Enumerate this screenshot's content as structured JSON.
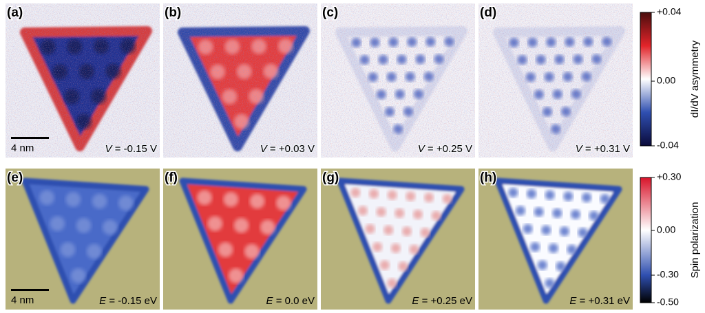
{
  "figure": {
    "panels": [
      {
        "label": "(a)",
        "scale_bar": "4 nm",
        "caption": {
          "symbol": "V",
          "value": "= -0.15 V"
        }
      },
      {
        "label": "(b)",
        "caption": {
          "symbol": "V",
          "value": "= +0.03 V"
        }
      },
      {
        "label": "(c)",
        "caption": {
          "symbol": "V",
          "value": "= +0.25 V"
        }
      },
      {
        "label": "(d)",
        "caption": {
          "symbol": "V",
          "value": "= +0.31 V"
        }
      },
      {
        "label": "(e)",
        "scale_bar": "4 nm",
        "caption": {
          "symbol": "E",
          "value": "= -0.15 eV"
        }
      },
      {
        "label": "(f)",
        "caption": {
          "symbol": "E",
          "value": "= 0.0 eV"
        }
      },
      {
        "label": "(g)",
        "caption": {
          "symbol": "E",
          "value": "= +0.25 eV"
        }
      },
      {
        "label": "(h)",
        "caption": {
          "symbol": "E",
          "value": "= +0.31 eV"
        }
      }
    ],
    "colorbars": [
      {
        "title": "dI/dV asymmetry",
        "ticks": [
          "+0.04",
          "0.00",
          "-0.04"
        ]
      },
      {
        "title": "Spin polarization",
        "ticks": [
          "+0.30",
          "0.00",
          "-0.30",
          "-0.50"
        ]
      }
    ]
  }
}
